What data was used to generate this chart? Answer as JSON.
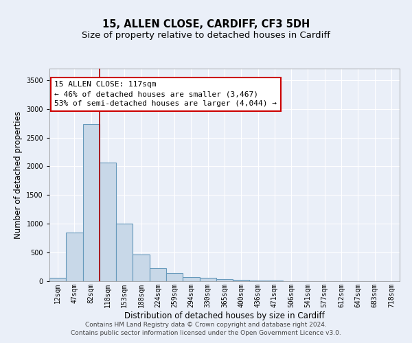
{
  "title1": "15, ALLEN CLOSE, CARDIFF, CF3 5DH",
  "title2": "Size of property relative to detached houses in Cardiff",
  "xlabel": "Distribution of detached houses by size in Cardiff",
  "ylabel": "Number of detached properties",
  "bar_labels": [
    "12sqm",
    "47sqm",
    "82sqm",
    "118sqm",
    "153sqm",
    "188sqm",
    "224sqm",
    "259sqm",
    "294sqm",
    "330sqm",
    "365sqm",
    "400sqm",
    "436sqm",
    "471sqm",
    "506sqm",
    "541sqm",
    "577sqm",
    "612sqm",
    "647sqm",
    "683sqm",
    "718sqm"
  ],
  "bar_values": [
    65,
    850,
    2730,
    2060,
    1000,
    460,
    230,
    145,
    70,
    55,
    35,
    25,
    15,
    8,
    4,
    2,
    1,
    1,
    0,
    0,
    0
  ],
  "bar_color": "#c8d8e8",
  "bar_edge_color": "#6699bb",
  "bar_edge_width": 0.8,
  "vline_x_index": 3,
  "vline_color": "#aa0000",
  "annotation_box_text": "15 ALLEN CLOSE: 117sqm\n← 46% of detached houses are smaller (3,467)\n53% of semi-detached houses are larger (4,044) →",
  "ylim": [
    0,
    3700
  ],
  "yticks": [
    0,
    500,
    1000,
    1500,
    2000,
    2500,
    3000,
    3500
  ],
  "footnote": "Contains HM Land Registry data © Crown copyright and database right 2024.\nContains public sector information licensed under the Open Government Licence v3.0.",
  "background_color": "#eaeff8",
  "plot_bg_color": "#eaeff8",
  "grid_color": "#ffffff",
  "title1_fontsize": 10.5,
  "title2_fontsize": 9.5,
  "xlabel_fontsize": 8.5,
  "ylabel_fontsize": 8.5,
  "tick_fontsize": 7,
  "annotation_fontsize": 8,
  "footnote_fontsize": 6.5
}
